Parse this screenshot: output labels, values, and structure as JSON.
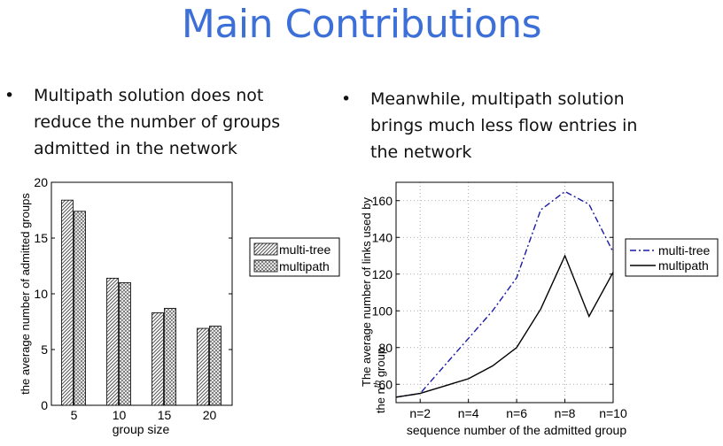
{
  "slide": {
    "title": "Main Contributions",
    "bullets": [
      {
        "symbol": "•",
        "text": "Multipath solution does not reduce the number of groups admitted in the network"
      },
      {
        "symbol": "•",
        "text": "Meanwhile, multipath solution brings much less flow entries in the network"
      }
    ]
  },
  "chart_data": [
    {
      "type": "bar",
      "xlabel": "group size",
      "ylabel": "the average number of admitted groups",
      "categories": [
        "5",
        "10",
        "15",
        "20"
      ],
      "ylim": [
        0,
        20
      ],
      "yticks": [
        0,
        5,
        10,
        15,
        20
      ],
      "series": [
        {
          "name": "multi-tree",
          "values": [
            18.4,
            11.4,
            8.3,
            6.9
          ]
        },
        {
          "name": "multipath",
          "values": [
            17.4,
            11.0,
            8.7,
            7.1
          ]
        }
      ],
      "legend": "right",
      "grid": false
    },
    {
      "type": "line",
      "xlabel": "sequence number of the admitted group",
      "ylabel_lines": [
        "The average number of links used by",
        "the n",
        "th",
        " group"
      ],
      "x": [
        1,
        2,
        3,
        4,
        5,
        6,
        7,
        8,
        9,
        10
      ],
      "xlim": [
        1,
        10
      ],
      "xticks": [
        2,
        4,
        6,
        8,
        10
      ],
      "xtick_labels": [
        "n=2",
        "n=4",
        "n=6",
        "n=8",
        "n=10"
      ],
      "ylim": [
        50,
        170
      ],
      "yticks": [
        60,
        80,
        100,
        120,
        140,
        160
      ],
      "series": [
        {
          "name": "multi-tree",
          "style": "dashdot",
          "color": "#1a1aa6",
          "values": [
            53,
            55,
            70,
            85,
            100,
            118,
            155,
            165,
            158,
            132
          ]
        },
        {
          "name": "multipath",
          "style": "solid",
          "color": "#000000",
          "values": [
            53,
            55,
            59,
            63,
            70,
            80,
            101,
            130,
            97,
            121
          ]
        }
      ],
      "legend": "right",
      "grid": true
    }
  ]
}
